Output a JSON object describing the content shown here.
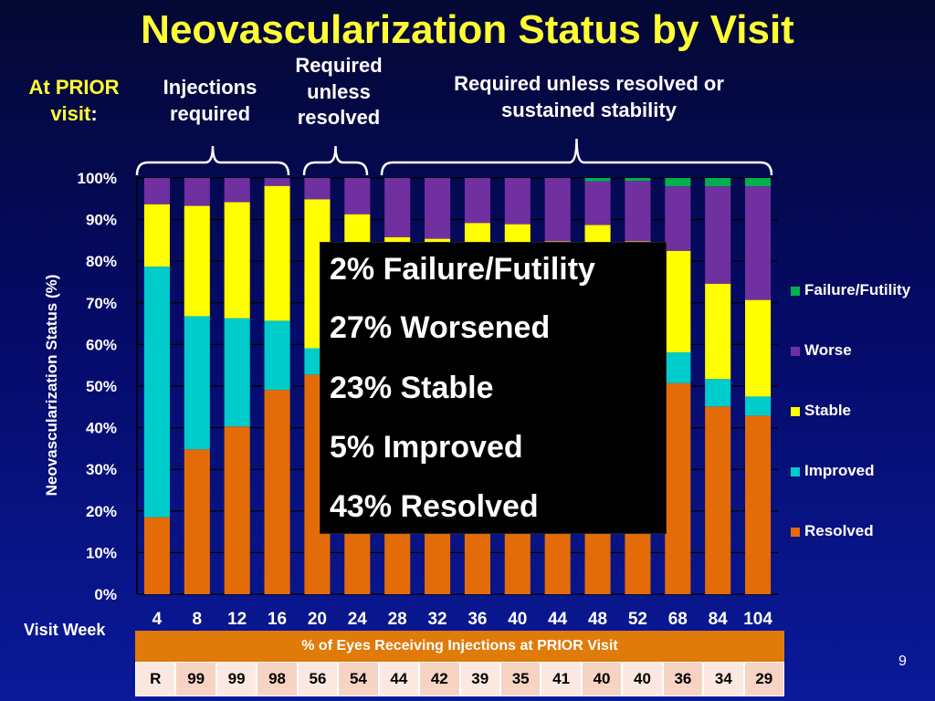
{
  "title": "Neovascularization Status by Visit",
  "headers": {
    "prior_visit_part1": "At PRIOR",
    "prior_visit_part2": "visit",
    "prior_visit_colon": ":",
    "injections_required_line1": "Injections",
    "injections_required_line2": "required",
    "required_unless_line1": "Required",
    "required_unless_line2": "unless",
    "required_unless_line3": "resolved",
    "required_sustained_line1": "Required unless resolved or",
    "required_sustained_line2": "sustained stability"
  },
  "chart_data": {
    "type": "bar",
    "stacked": true,
    "categories": [
      "4",
      "8",
      "12",
      "16",
      "20",
      "24",
      "28",
      "32",
      "36",
      "40",
      "44",
      "48",
      "52",
      "68",
      "84",
      "104"
    ],
    "xlabel": "Visit Week",
    "ylabel": "Neovascularization Status (%)",
    "ylim": [
      0,
      100
    ],
    "yticks": [
      "0%",
      "10%",
      "20%",
      "30%",
      "40%",
      "50%",
      "60%",
      "70%",
      "80%",
      "90%",
      "100%"
    ],
    "grid": true,
    "legend_position": "right",
    "series": [
      {
        "name": "Resolved",
        "color": "#e36c09",
        "values": [
          18.5,
          34.8,
          40.3,
          49.1,
          52.8,
          48.0,
          48.0,
          48.0,
          48.0,
          48.0,
          48.0,
          48.0,
          48.0,
          50.7,
          45.1,
          42.9
        ]
      },
      {
        "name": "Improved",
        "color": "#00cccc",
        "values": [
          60.2,
          32.0,
          26.0,
          16.6,
          6.3,
          5.0,
          5.0,
          5.0,
          5.0,
          5.0,
          5.0,
          5.0,
          5.0,
          7.4,
          6.6,
          4.6
        ]
      },
      {
        "name": "Stable",
        "color": "#ffff00",
        "values": [
          15.0,
          26.5,
          27.9,
          32.4,
          35.8,
          38.3,
          32.8,
          32.4,
          36.2,
          35.9,
          31.8,
          35.7,
          31.8,
          24.4,
          22.9,
          23.2
        ]
      },
      {
        "name": "Worse",
        "color": "#7030a0",
        "values": [
          6.3,
          6.7,
          5.8,
          1.9,
          5.1,
          8.7,
          14.2,
          14.6,
          10.8,
          11.1,
          15.2,
          10.5,
          14.5,
          15.5,
          23.4,
          27.3
        ]
      },
      {
        "name": "Failure/Futility",
        "color": "#00b050",
        "values": [
          0,
          0,
          0,
          0,
          0,
          0,
          0,
          0,
          0,
          0,
          0,
          0.8,
          0.7,
          2.0,
          2.0,
          2.0
        ]
      }
    ]
  },
  "legend": [
    {
      "label": "Failure/Futility",
      "color": "#00b050"
    },
    {
      "label": "Worse",
      "color": "#7030a0"
    },
    {
      "label": "Stable",
      "color": "#ffff00"
    },
    {
      "label": "Improved",
      "color": "#00cccc"
    },
    {
      "label": "Resolved",
      "color": "#e36c09"
    }
  ],
  "callout": [
    "2% Failure/Futility",
    "27% Worsened",
    "23% Stable",
    "5% Improved",
    "43% Resolved"
  ],
  "injection_table": {
    "header": "% of Eyes Receiving Injections at PRIOR Visit",
    "row_label": "R",
    "values": [
      "99",
      "99",
      "98",
      "56",
      "54",
      "44",
      "42",
      "39",
      "35",
      "41",
      "40",
      "40",
      "36",
      "34",
      "29"
    ]
  },
  "page_number": "9",
  "colors": {
    "title": "#ffff33",
    "header_accent": "#ffff33",
    "table_header": "#e07b0a"
  }
}
